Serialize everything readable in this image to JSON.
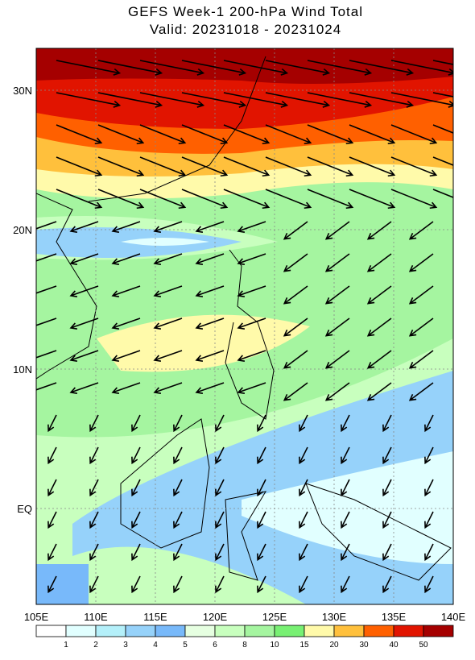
{
  "title": "GEFS Week-1 200-hPa Wind Total",
  "subtitle": "Valid: 20231018 - 20231024",
  "lon_ticks": [
    {
      "value": 105,
      "label": "105E"
    },
    {
      "value": 110,
      "label": "110E"
    },
    {
      "value": 115,
      "label": "115E"
    },
    {
      "value": 120,
      "label": "120E"
    },
    {
      "value": 125,
      "label": "125E"
    },
    {
      "value": 130,
      "label": "130E"
    },
    {
      "value": 135,
      "label": "135E"
    },
    {
      "value": 140,
      "label": "140E"
    }
  ],
  "lat_ticks": [
    {
      "value": 30,
      "label": "30N"
    },
    {
      "value": 20,
      "label": "20N"
    },
    {
      "value": 10,
      "label": "10N"
    },
    {
      "value": 0,
      "label": "EQ"
    }
  ],
  "colorbar": {
    "levels": [
      1,
      2,
      3,
      4,
      5,
      6,
      8,
      10,
      15,
      20,
      30,
      40,
      50
    ],
    "colors": [
      "#ffffff",
      "#e1ffff",
      "#b4f0fa",
      "#96d2fa",
      "#78b9fa",
      "#e6ffe1",
      "#c8ffbe",
      "#a5f5a0",
      "#78f073",
      "#fffaaa",
      "#ffc03c",
      "#ff6000",
      "#e11400",
      "#a50000"
    ]
  }
}
